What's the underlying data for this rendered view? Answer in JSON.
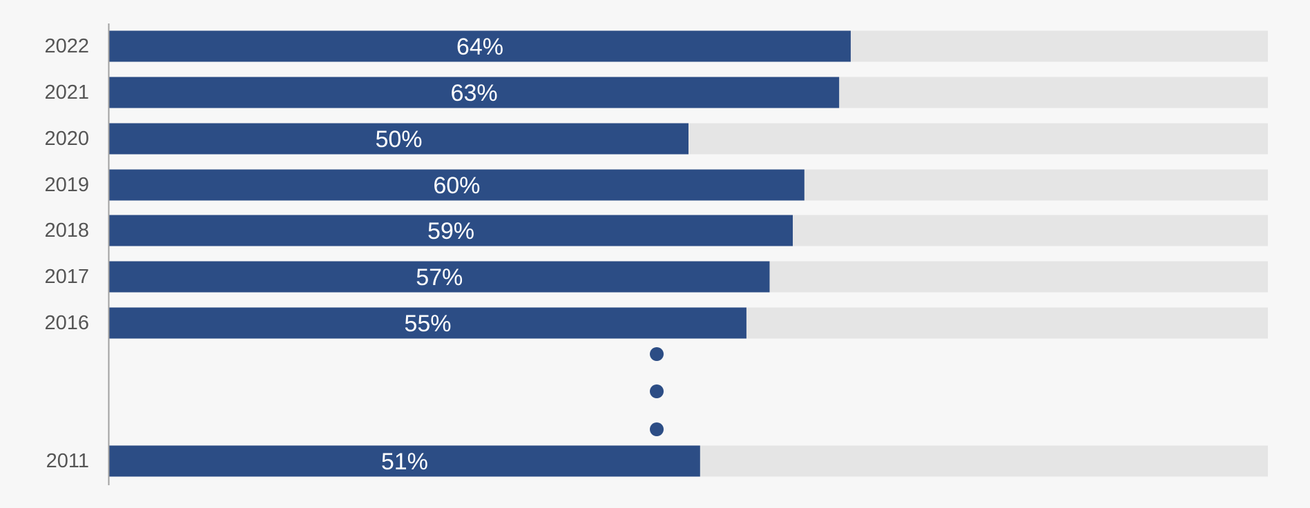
{
  "chart_data": {
    "type": "bar",
    "orientation": "horizontal",
    "categories": [
      "2022",
      "2021",
      "2020",
      "2019",
      "2018",
      "2017",
      "2016",
      "2011"
    ],
    "values": [
      64,
      63,
      50,
      60,
      59,
      57,
      55,
      51
    ],
    "value_labels": [
      "64%",
      "63%",
      "50%",
      "60%",
      "59%",
      "57%",
      "55%",
      "51%"
    ],
    "xlim": [
      0,
      100
    ],
    "unit": "%",
    "grid": false,
    "legend": "none",
    "gap_indicator": "vertical ellipsis between 2016 and 2011",
    "colors": {
      "bar": "#2c4d85",
      "track": "#e5e5e5",
      "axis": "#a0a0a0",
      "label_text": "#555555",
      "value_text": "#ffffff",
      "background": "#f7f7f7"
    }
  }
}
